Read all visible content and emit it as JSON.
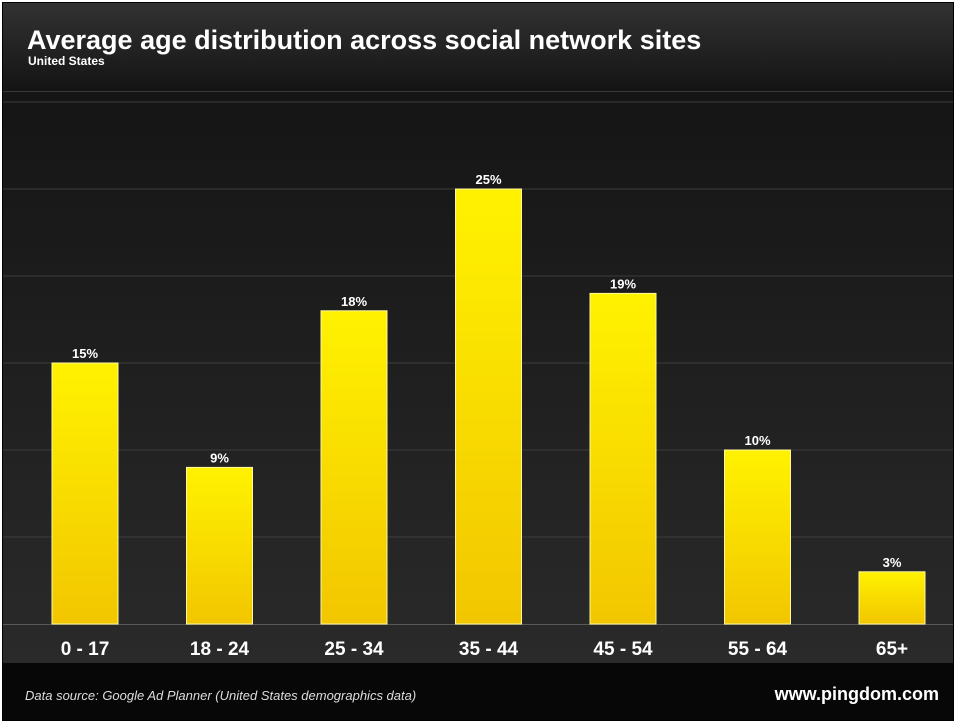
{
  "chart_data": {
    "type": "bar",
    "title": "Average age distribution across social network sites",
    "subtitle": "United States",
    "categories": [
      "0 - 17",
      "18 - 24",
      "25 - 34",
      "35 - 44",
      "45 - 54",
      "55 - 64",
      "65+"
    ],
    "values": [
      15,
      9,
      18,
      25,
      19,
      10,
      3
    ],
    "value_labels": [
      "15%",
      "9%",
      "18%",
      "25%",
      "19%",
      "10%",
      "3%"
    ],
    "ylim": [
      0,
      30
    ],
    "grid": true,
    "bar_color": "#f5d300"
  },
  "footer": {
    "source": "Data source: Google Ad Planner (United States demographics data)",
    "brand": "www.pingdom.com"
  },
  "colors": {
    "background": "#0f0f0f",
    "gridline": "#3c3c3c",
    "bar_top": "#fff200",
    "bar_bottom": "#f2c600"
  }
}
